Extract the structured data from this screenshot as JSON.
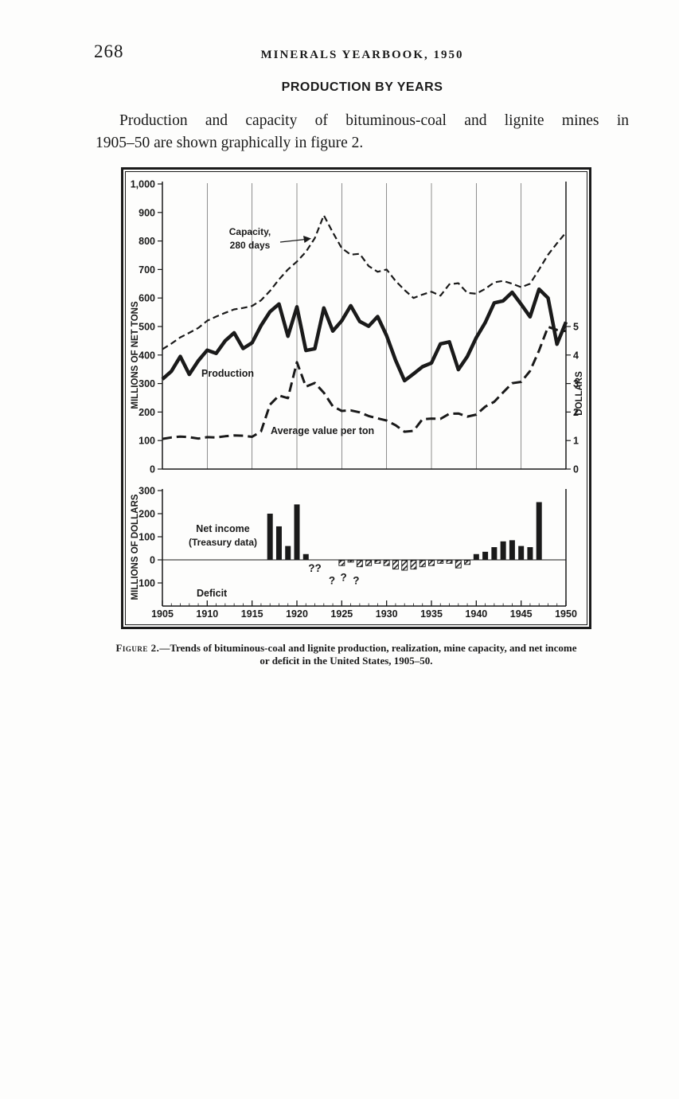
{
  "colors": {
    "ink": "#1a1a1a",
    "paper": "#fdfdfc"
  },
  "page": {
    "number": "268",
    "running_head": "MINERALS YEARBOOK, 1950",
    "section_heading": "PRODUCTION BY YEARS",
    "paragraph_line1": "Production and capacity of bituminous-coal and lignite mines in",
    "paragraph_line2": "1905–50 are shown graphically in figure 2.",
    "caption_prefix": "Figure 2.",
    "caption_line1_rest": "—Trends of bituminous-coal and lignite production, realization, mine capacity, and net income",
    "caption_line2": "or deficit in the United States, 1905–50."
  },
  "chart_data": [
    {
      "type": "line",
      "title": "",
      "ylabel_left": "MILLIONS OF NET TONS",
      "ylabel_right": "DOLLARS",
      "ylim_left": [
        0,
        1000
      ],
      "yticks_left_labels": [
        "0",
        "100",
        "200",
        "300",
        "400",
        "500",
        "600",
        "700",
        "800",
        "900",
        "1,000"
      ],
      "ylim_right": [
        0,
        5
      ],
      "yticks_right_labels": [
        "0",
        "1",
        "2",
        "3",
        "4",
        "5"
      ],
      "years_range": [
        1905,
        1950
      ],
      "xtick_years": [
        1905,
        1910,
        1915,
        1920,
        1925,
        1930,
        1935,
        1940,
        1945,
        1950
      ],
      "grid_vertical_years": [
        1910,
        1915,
        1920,
        1925,
        1930,
        1935,
        1940,
        1945
      ],
      "labels": {
        "capacity_line1": "Capacity,",
        "capacity_line2": "280 days",
        "production": "Production",
        "avg_value": "Average value per ton"
      },
      "series": [
        {
          "name": "Capacity, 280 days",
          "axis": "left",
          "style": "dashed",
          "values": [
            420,
            440,
            462,
            478,
            495,
            520,
            535,
            548,
            560,
            565,
            572,
            592,
            625,
            665,
            700,
            728,
            762,
            810,
            890,
            830,
            775,
            752,
            755,
            712,
            692,
            700,
            660,
            628,
            600,
            612,
            622,
            608,
            648,
            652,
            618,
            615,
            632,
            655,
            660,
            650,
            638,
            650,
            700,
            752,
            792,
            830
          ]
        },
        {
          "name": "Production",
          "axis": "left",
          "style": "solid",
          "values": [
            315,
            343,
            395,
            332,
            380,
            417,
            406,
            450,
            478,
            423,
            443,
            503,
            552,
            579,
            466,
            569,
            416,
            422,
            565,
            484,
            520,
            573,
            518,
            501,
            535,
            468,
            382,
            310,
            334,
            359,
            372,
            439,
            446,
            349,
            395,
            461,
            514,
            583,
            590,
            620,
            578,
            534,
            631,
            600,
            438,
            516
          ]
        },
        {
          "name": "Average value per ton",
          "axis": "right",
          "style": "dashed-bold",
          "values": [
            1.06,
            1.11,
            1.14,
            1.12,
            1.07,
            1.12,
            1.11,
            1.15,
            1.18,
            1.17,
            1.13,
            1.32,
            2.26,
            2.58,
            2.49,
            3.75,
            2.89,
            3.02,
            2.68,
            2.2,
            2.04,
            2.06,
            1.99,
            1.86,
            1.78,
            1.7,
            1.54,
            1.31,
            1.34,
            1.75,
            1.77,
            1.76,
            1.94,
            1.95,
            1.84,
            1.91,
            2.19,
            2.36,
            2.69,
            3.01,
            3.06,
            3.44,
            4.16,
            4.99,
            4.88,
            4.84
          ]
        }
      ]
    },
    {
      "type": "bar",
      "ylabel_left": "MILLIONS OF DOLLARS",
      "ylim": [
        -100,
        300
      ],
      "yticks": [
        {
          "label": "300",
          "value": 300
        },
        {
          "label": "200",
          "value": 200
        },
        {
          "label": "100",
          "value": 100
        },
        {
          "label": "0",
          "value": 0
        },
        {
          "label": "100",
          "value": -100
        }
      ],
      "years_range": [
        1905,
        1950
      ],
      "xtick_years": [
        1905,
        1910,
        1915,
        1920,
        1925,
        1930,
        1935,
        1940,
        1945,
        1950
      ],
      "labels": {
        "net_income_line1": "Net income",
        "net_income_line2": "(Treasury data)",
        "deficit": "Deficit"
      },
      "series": [
        {
          "name": "Net income (Treasury data)",
          "style": "solid",
          "bars": [
            {
              "year": 1917,
              "value": 200
            },
            {
              "year": 1918,
              "value": 145
            },
            {
              "year": 1919,
              "value": 60
            },
            {
              "year": 1920,
              "value": 240
            },
            {
              "year": 1921,
              "value": 25
            },
            {
              "year": 1940,
              "value": 25
            },
            {
              "year": 1941,
              "value": 35
            },
            {
              "year": 1942,
              "value": 55
            },
            {
              "year": 1943,
              "value": 80
            },
            {
              "year": 1944,
              "value": 85
            },
            {
              "year": 1945,
              "value": 60
            },
            {
              "year": 1946,
              "value": 55
            },
            {
              "year": 1947,
              "value": 250
            }
          ]
        },
        {
          "name": "Deficit",
          "style": "hatched",
          "bars": [
            {
              "year": 1925,
              "value": -25
            },
            {
              "year": 1926,
              "value": -10
            },
            {
              "year": 1927,
              "value": -30
            },
            {
              "year": 1928,
              "value": -25
            },
            {
              "year": 1929,
              "value": -15
            },
            {
              "year": 1930,
              "value": -25
            },
            {
              "year": 1931,
              "value": -40
            },
            {
              "year": 1932,
              "value": -45
            },
            {
              "year": 1933,
              "value": -40
            },
            {
              "year": 1934,
              "value": -30
            },
            {
              "year": 1935,
              "value": -25
            },
            {
              "year": 1936,
              "value": -15
            },
            {
              "year": 1937,
              "value": -15
            },
            {
              "year": 1938,
              "value": -35
            },
            {
              "year": 1939,
              "value": -20
            }
          ]
        }
      ],
      "annotations": [
        {
          "text": "??",
          "year": 1922.0,
          "value": -52
        },
        {
          "text": "?",
          "year": 1923.9,
          "value": -105
        },
        {
          "text": "?",
          "year": 1925.2,
          "value": -92
        },
        {
          "text": "?",
          "year": 1926.6,
          "value": -105
        }
      ]
    }
  ]
}
